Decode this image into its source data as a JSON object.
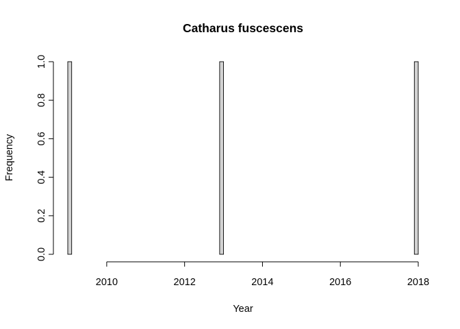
{
  "chart_data": {
    "type": "bar",
    "chart_kind": "histogram",
    "title": "Catharus fuscescens",
    "xlabel": "Year",
    "ylabel": "Frequency",
    "bin_width": 0.1,
    "x_range": [
      2009,
      2018
    ],
    "xlim": [
      2009,
      2018
    ],
    "ylim": [
      0,
      1
    ],
    "x_ticks": [
      2010,
      2012,
      2014,
      2016,
      2018
    ],
    "y_ticks": [
      0.0,
      0.2,
      0.4,
      0.6,
      0.8,
      1.0
    ],
    "x_tick_labels": [
      "2010",
      "2012",
      "2014",
      "2016",
      "2018"
    ],
    "y_tick_labels": [
      "0.0",
      "0.2",
      "0.4",
      "0.6",
      "0.8",
      "1.0"
    ],
    "nonzero_bins": [
      {
        "from": 2009.0,
        "to": 2009.1,
        "count": 1
      },
      {
        "from": 2012.9,
        "to": 2013.0,
        "count": 1
      },
      {
        "from": 2017.9,
        "to": 2018.0,
        "count": 1
      }
    ],
    "bar_fill": "#d3d3d3",
    "bar_stroke": "#000000",
    "grid": false,
    "legend": "none"
  }
}
